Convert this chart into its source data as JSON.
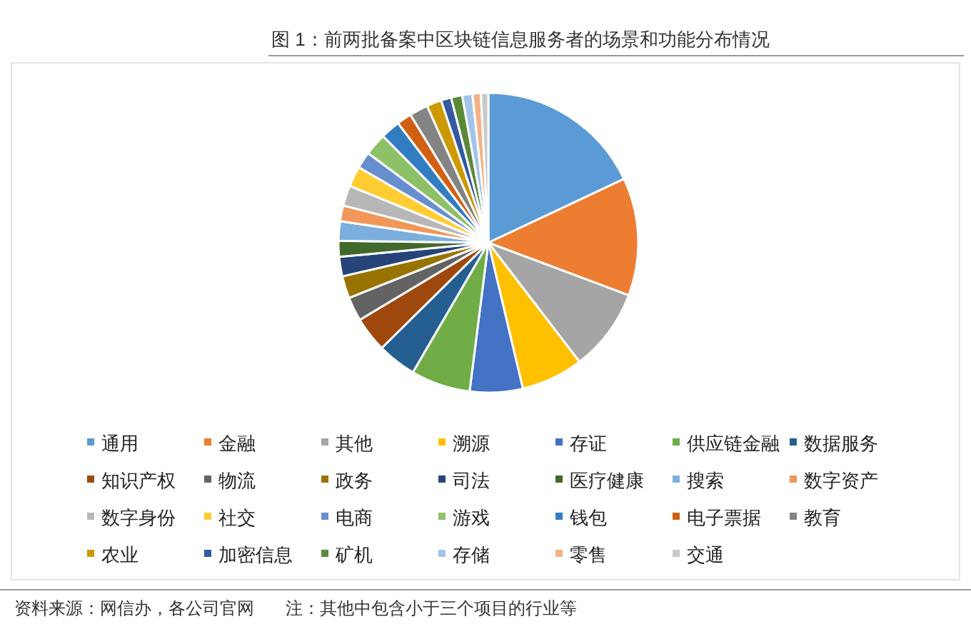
{
  "chart_data": {
    "type": "pie",
    "title": "图 1：前两批备案中区块链信息服务者的场景和功能分布情况",
    "categories": [
      "通用",
      "金融",
      "其他",
      "溯源",
      "存证",
      "供应链金融",
      "数据服务",
      "知识产权",
      "物流",
      "政务",
      "司法",
      "医疗健康",
      "搜索",
      "数字资产",
      "数字身份",
      "社交",
      "电商",
      "游戏",
      "钱包",
      "电子票据",
      "教育",
      "农业",
      "加密信息",
      "矿机",
      "存储",
      "零售",
      "交通"
    ],
    "values": [
      18,
      12.7,
      8.9,
      6.7,
      5.7,
      6.4,
      4.2,
      3.8,
      2.6,
      2.4,
      2.1,
      1.7,
      2.1,
      1.7,
      2.2,
      2.2,
      1.8,
      2.4,
      2.1,
      1.6,
      2,
      1.6,
      1.1,
      1.2,
      1.1,
      0.9,
      0.8
    ],
    "colors": [
      "#5b9bd5",
      "#ed7d31",
      "#a5a5a5",
      "#ffc000",
      "#4472c4",
      "#70ad47",
      "#255e91",
      "#9e480e",
      "#636363",
      "#997300",
      "#264478",
      "#43682b",
      "#7cafdd",
      "#f1975a",
      "#b7b7b7",
      "#ffcd33",
      "#698ed0",
      "#8cc168",
      "#327dc2",
      "#d26012",
      "#848484",
      "#cc9a00",
      "#335aa1",
      "#5a8a39",
      "#a3c4e7",
      "#f4b183",
      "#c9c9c9"
    ],
    "legend": "bottom",
    "annotations": [
      "资料来源：网信办，各公司官网",
      "注：其他中包含小于三个项目的行业等"
    ]
  }
}
